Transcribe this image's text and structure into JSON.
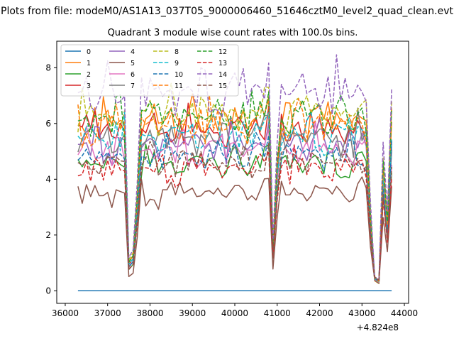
{
  "chart_data": {
    "type": "line",
    "suptitle": "Plots from file: modeM0/AS1A13_037T05_9000006460_51646cztM0_level2_quad_clean.evt",
    "title": "Quadrant 3 module wise count rates with 100.0s bins.",
    "xlabel": "",
    "ylabel": "",
    "x_offset_label": "+4.824e8",
    "xlim": [
      35800,
      44100
    ],
    "ylim": [
      -0.45,
      8.95
    ],
    "x_ticks": [
      36000,
      37000,
      38000,
      39000,
      40000,
      41000,
      42000,
      43000,
      44000
    ],
    "y_ticks": [
      0,
      2,
      4,
      6,
      8
    ],
    "legend_position": "upper-left",
    "legend_columns": 4,
    "grid": false,
    "x": [
      36300,
      36400,
      36500,
      36600,
      36700,
      36800,
      36900,
      37000,
      37100,
      37200,
      37300,
      37400,
      37500,
      37600,
      37700,
      37800,
      37900,
      38000,
      38100,
      38200,
      38300,
      38400,
      38500,
      38600,
      38700,
      38800,
      38900,
      39000,
      39100,
      39200,
      39300,
      39400,
      39500,
      39600,
      39700,
      39800,
      39900,
      40000,
      40100,
      40200,
      40300,
      40400,
      40500,
      40600,
      40700,
      40800,
      40900,
      41000,
      41100,
      41200,
      41300,
      41400,
      41500,
      41600,
      41700,
      41800,
      41900,
      42000,
      42100,
      42200,
      42300,
      42400,
      42500,
      42600,
      42700,
      42800,
      42900,
      43000,
      43100,
      43200,
      43300,
      43400,
      43500,
      43600,
      43700
    ],
    "series": [
      {
        "name": "0",
        "color": "#1f77b4",
        "dash": "solid",
        "level": 0.0,
        "dip": 0.0
      },
      {
        "name": "1",
        "color": "#ff7f0e",
        "dash": "solid",
        "level": 6.05,
        "dip": 1.2
      },
      {
        "name": "2",
        "color": "#2ca02c",
        "dash": "solid",
        "level": 4.55,
        "dip": 0.9
      },
      {
        "name": "3",
        "color": "#d62728",
        "dash": "solid",
        "level": 5.75,
        "dip": 1.1
      },
      {
        "name": "4",
        "color": "#9467bd",
        "dash": "solid",
        "level": 5.25,
        "dip": 1.0
      },
      {
        "name": "5",
        "color": "#8c564b",
        "dash": "solid",
        "level": 3.5,
        "dip": 0.6
      },
      {
        "name": "6",
        "color": "#e377c2",
        "dash": "solid",
        "level": 5.05,
        "dip": 1.0
      },
      {
        "name": "7",
        "color": "#7f7f7f",
        "dash": "solid",
        "level": 5.45,
        "dip": 1.0
      },
      {
        "name": "8",
        "color": "#bcbd22",
        "dash": "dashed",
        "level": 6.35,
        "dip": 1.3
      },
      {
        "name": "9",
        "color": "#17becf",
        "dash": "dashed",
        "level": 5.55,
        "dip": 1.1
      },
      {
        "name": "10",
        "color": "#1f77b4",
        "dash": "dashed",
        "level": 4.85,
        "dip": 1.0
      },
      {
        "name": "11",
        "color": "#ff7f0e",
        "dash": "dashed",
        "level": 5.95,
        "dip": 1.2
      },
      {
        "name": "12",
        "color": "#2ca02c",
        "dash": "dashed",
        "level": 6.2,
        "dip": 1.2
      },
      {
        "name": "13",
        "color": "#d62728",
        "dash": "dashed",
        "level": 4.35,
        "dip": 0.9
      },
      {
        "name": "14",
        "color": "#9467bd",
        "dash": "dashed",
        "level": 7.1,
        "dip": 1.4
      },
      {
        "name": "15",
        "color": "#8c564b",
        "dash": "dashed",
        "level": 4.6,
        "dip": 0.9
      }
    ]
  }
}
